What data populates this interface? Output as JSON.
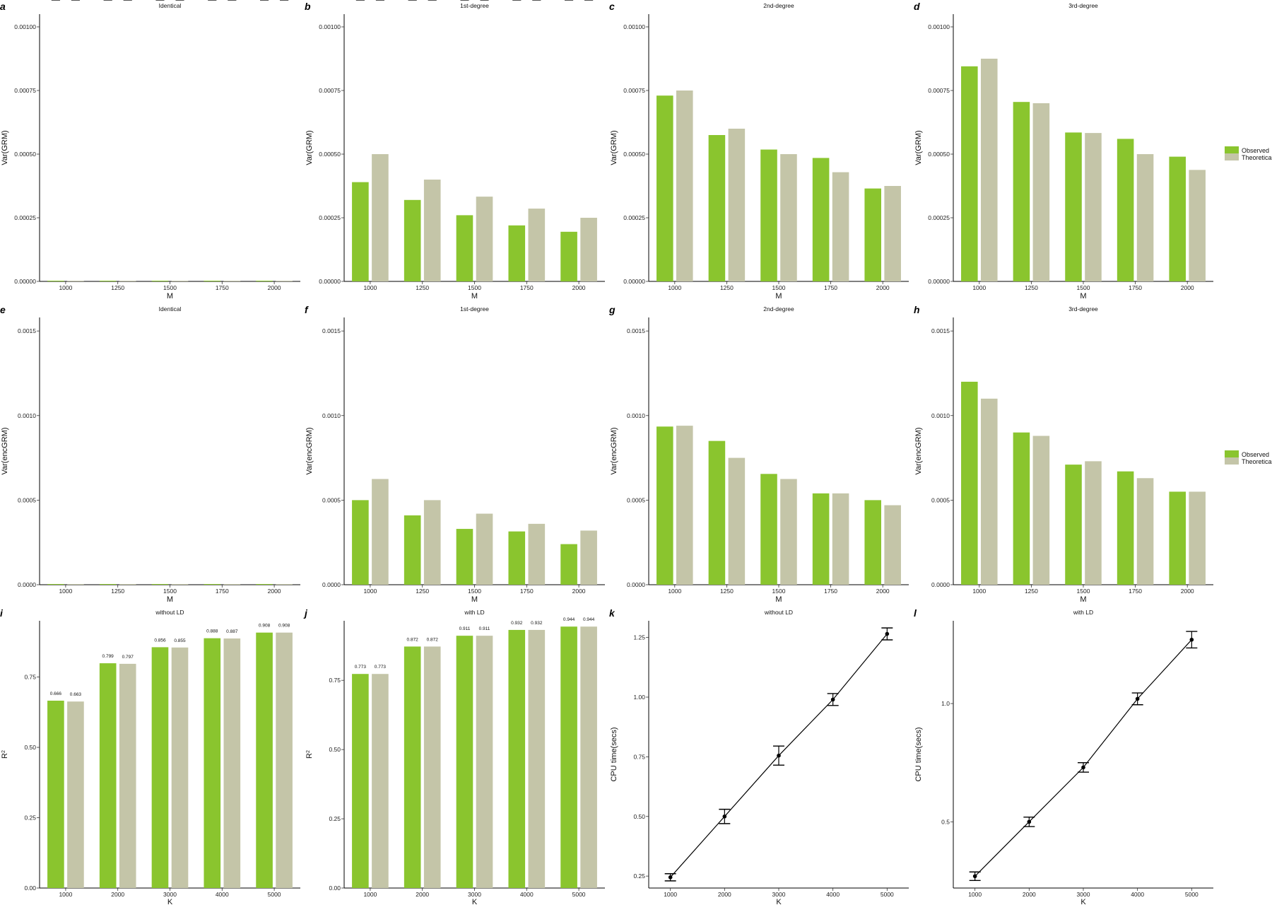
{
  "colors": {
    "observed": "#8ac52e",
    "theoretical": "#c4c5a8",
    "line": "#000000"
  },
  "legends": [
    {
      "items": [
        {
          "label": "Observed",
          "color": "#8ac52e"
        },
        {
          "label": "Theoretical",
          "color": "#c4c5a8"
        }
      ]
    },
    {
      "items": [
        {
          "label": "Observed",
          "color": "#8ac52e"
        },
        {
          "label": "Theoretical",
          "color": "#c4c5a8"
        }
      ]
    }
  ],
  "chart_data": [
    {
      "letter": "a",
      "type": "bar",
      "title": "Identical",
      "xlabel": "M",
      "ylabel": "Var(GRM)",
      "ylabel_sup": "",
      "categories": [
        "1000",
        "1250",
        "1500",
        "1750",
        "2000"
      ],
      "ylim": [
        0,
        0.00105
      ],
      "yticks": [
        0,
        0.00025,
        0.0005,
        0.00075,
        0.001
      ],
      "yticklabels": [
        "0.00000",
        "0.00025",
        "0.00050",
        "0.00075",
        "0.00100"
      ],
      "series": [
        {
          "name": "Observed",
          "values": [
            2e-06,
            2e-06,
            2e-06,
            2e-06,
            2e-06
          ]
        },
        {
          "name": "Theoretical",
          "values": [
            1e-06,
            1e-06,
            1e-06,
            1e-06,
            1e-06
          ]
        }
      ]
    },
    {
      "letter": "b",
      "type": "bar",
      "title": "1st-degree",
      "xlabel": "M",
      "ylabel": "Var(GRM)",
      "ylabel_sup": "",
      "categories": [
        "1000",
        "1250",
        "1500",
        "1750",
        "2000"
      ],
      "ylim": [
        0,
        0.00105
      ],
      "yticks": [
        0,
        0.00025,
        0.0005,
        0.00075,
        0.001
      ],
      "yticklabels": [
        "0.00000",
        "0.00025",
        "0.00050",
        "0.00075",
        "0.00100"
      ],
      "series": [
        {
          "name": "Observed",
          "values": [
            0.00039,
            0.00032,
            0.00026,
            0.00022,
            0.000195
          ]
        },
        {
          "name": "Theoretical",
          "values": [
            0.0005,
            0.0004,
            0.000333,
            0.000286,
            0.00025
          ]
        }
      ]
    },
    {
      "letter": "c",
      "type": "bar",
      "title": "2nd-degree",
      "xlabel": "M",
      "ylabel": "Var(GRM)",
      "ylabel_sup": "",
      "categories": [
        "1000",
        "1250",
        "1500",
        "1750",
        "2000"
      ],
      "ylim": [
        0,
        0.00105
      ],
      "yticks": [
        0,
        0.00025,
        0.0005,
        0.00075,
        0.001
      ],
      "yticklabels": [
        "0.00000",
        "0.00025",
        "0.00050",
        "0.00075",
        "0.00100"
      ],
      "series": [
        {
          "name": "Observed",
          "values": [
            0.00073,
            0.000575,
            0.000518,
            0.000485,
            0.000365
          ]
        },
        {
          "name": "Theoretical",
          "values": [
            0.00075,
            0.0006,
            0.0005,
            0.000429,
            0.000375
          ]
        }
      ]
    },
    {
      "letter": "d",
      "type": "bar",
      "title": "3rd-degree",
      "xlabel": "M",
      "ylabel": "Var(GRM)",
      "ylabel_sup": "",
      "categories": [
        "1000",
        "1250",
        "1500",
        "1750",
        "2000"
      ],
      "ylim": [
        0,
        0.00105
      ],
      "yticks": [
        0,
        0.00025,
        0.0005,
        0.00075,
        0.001
      ],
      "yticklabels": [
        "0.00000",
        "0.00025",
        "0.00050",
        "0.00075",
        "0.00100"
      ],
      "series": [
        {
          "name": "Observed",
          "values": [
            0.000845,
            0.000705,
            0.000585,
            0.00056,
            0.00049
          ]
        },
        {
          "name": "Theoretical",
          "values": [
            0.000875,
            0.0007,
            0.000583,
            0.0005,
            0.000438
          ]
        }
      ]
    },
    {
      "letter": "e",
      "type": "bar",
      "title": "Identical",
      "xlabel": "M",
      "ylabel": "Var(encGRM)",
      "ylabel_sup": "",
      "categories": [
        "1000",
        "1250",
        "1500",
        "1750",
        "2000"
      ],
      "ylim": [
        0,
        0.00158
      ],
      "yticks": [
        0,
        0.0005,
        0.001,
        0.0015
      ],
      "yticklabels": [
        "0.0000",
        "0.0005",
        "0.0010",
        "0.0015"
      ],
      "series": [
        {
          "name": "Observed",
          "values": [
            3e-06,
            3e-06,
            3e-06,
            3e-06,
            3e-06
          ]
        },
        {
          "name": "Theoretical",
          "values": [
            2e-06,
            2e-06,
            2e-06,
            2e-06,
            2e-06
          ]
        }
      ]
    },
    {
      "letter": "f",
      "type": "bar",
      "title": "1st-degree",
      "xlabel": "M",
      "ylabel": "Var(encGRM)",
      "ylabel_sup": "",
      "categories": [
        "1000",
        "1250",
        "1500",
        "1750",
        "2000"
      ],
      "ylim": [
        0,
        0.00158
      ],
      "yticks": [
        0,
        0.0005,
        0.001,
        0.0015
      ],
      "yticklabels": [
        "0.0000",
        "0.0005",
        "0.0010",
        "0.0015"
      ],
      "series": [
        {
          "name": "Observed",
          "values": [
            0.0005,
            0.00041,
            0.00033,
            0.000315,
            0.00024
          ]
        },
        {
          "name": "Theoretical",
          "values": [
            0.000625,
            0.0005,
            0.00042,
            0.00036,
            0.00032
          ]
        }
      ]
    },
    {
      "letter": "g",
      "type": "bar",
      "title": "2nd-degree",
      "xlabel": "M",
      "ylabel": "Var(encGRM)",
      "ylabel_sup": "",
      "categories": [
        "1000",
        "1250",
        "1500",
        "1750",
        "2000"
      ],
      "ylim": [
        0,
        0.00158
      ],
      "yticks": [
        0,
        0.0005,
        0.001,
        0.0015
      ],
      "yticklabels": [
        "0.0000",
        "0.0005",
        "0.0010",
        "0.0015"
      ],
      "series": [
        {
          "name": "Observed",
          "values": [
            0.000935,
            0.00085,
            0.000655,
            0.00054,
            0.0005
          ]
        },
        {
          "name": "Theoretical",
          "values": [
            0.00094,
            0.00075,
            0.000625,
            0.00054,
            0.00047
          ]
        }
      ]
    },
    {
      "letter": "h",
      "type": "bar",
      "title": "3rd-degree",
      "xlabel": "M",
      "ylabel": "Var(encGRM)",
      "ylabel_sup": "",
      "categories": [
        "1000",
        "1250",
        "1500",
        "1750",
        "2000"
      ],
      "ylim": [
        0,
        0.00158
      ],
      "yticks": [
        0,
        0.0005,
        0.001,
        0.0015
      ],
      "yticklabels": [
        "0.0000",
        "0.0005",
        "0.0010",
        "0.0015"
      ],
      "series": [
        {
          "name": "Observed",
          "values": [
            0.0012,
            0.0009,
            0.00071,
            0.00067,
            0.00055
          ]
        },
        {
          "name": "Theoretical",
          "values": [
            0.0011,
            0.00088,
            0.00073,
            0.00063,
            0.00055
          ]
        }
      ]
    },
    {
      "letter": "i",
      "type": "bar",
      "title": "without LD",
      "xlabel": "K",
      "ylabel": "R",
      "ylabel_sup": "2",
      "categories": [
        "1000",
        "2000",
        "3000",
        "4000",
        "5000"
      ],
      "ylim": [
        0,
        0.95
      ],
      "yticks": [
        0,
        0.25,
        0.5,
        0.75
      ],
      "yticklabels": [
        "0.00",
        "0.25",
        "0.50",
        "0.75"
      ],
      "series": [
        {
          "name": "Observed",
          "values": [
            0.666,
            0.799,
            0.856,
            0.888,
            0.908
          ],
          "labels": [
            "0.666",
            "0.799",
            "0.856",
            "0.888",
            "0.908"
          ],
          "err": [
            0.002,
            0.002,
            0.002,
            0.002,
            0.002
          ]
        },
        {
          "name": "Theoretical",
          "values": [
            0.663,
            0.797,
            0.855,
            0.887,
            0.908
          ],
          "labels": [
            "0.663",
            "0.797",
            "0.855",
            "0.887",
            "0.908"
          ],
          "err": [
            0.002,
            0.002,
            0.002,
            0.002,
            0.002
          ]
        }
      ]
    },
    {
      "letter": "j",
      "type": "bar",
      "title": "with LD",
      "xlabel": "K",
      "ylabel": "R",
      "ylabel_sup": "2",
      "categories": [
        "1000",
        "2000",
        "3000",
        "4000",
        "5000"
      ],
      "ylim": [
        0,
        0.965
      ],
      "yticks": [
        0,
        0.25,
        0.5,
        0.75
      ],
      "yticklabels": [
        "0.00",
        "0.25",
        "0.50",
        "0.75"
      ],
      "series": [
        {
          "name": "Observed",
          "values": [
            0.773,
            0.872,
            0.911,
            0.932,
            0.944
          ],
          "labels": [
            "0.773",
            "0.872",
            "0.911",
            "0.932",
            "0.944"
          ],
          "err": [
            0.002,
            0.002,
            0.002,
            0.002,
            0.002
          ]
        },
        {
          "name": "Theoretical",
          "values": [
            0.773,
            0.872,
            0.911,
            0.932,
            0.944
          ],
          "labels": [
            "0.773",
            "0.872",
            "0.911",
            "0.932",
            "0.944"
          ],
          "err": [
            0.002,
            0.002,
            0.002,
            0.002,
            0.002
          ]
        }
      ]
    },
    {
      "letter": "k",
      "type": "line",
      "title": "without LD",
      "xlabel": "K",
      "ylabel": "CPU time(secs)",
      "ylabel_sup": "",
      "x": [
        1000,
        2000,
        3000,
        4000,
        5000
      ],
      "xticklabels": [
        "1000",
        "2000",
        "3000",
        "4000",
        "5000"
      ],
      "xlim": [
        600,
        5400
      ],
      "ylim": [
        0.2,
        1.32
      ],
      "yticks": [
        0.25,
        0.5,
        0.75,
        1.0,
        1.25
      ],
      "yticklabels": [
        "0.25",
        "0.50",
        "0.75",
        "1.00",
        "1.25"
      ],
      "y": [
        0.245,
        0.5,
        0.755,
        0.99,
        1.265
      ],
      "err": [
        0.015,
        0.03,
        0.04,
        0.025,
        0.025
      ]
    },
    {
      "letter": "l",
      "type": "line",
      "title": "with LD",
      "xlabel": "K",
      "ylabel": "CPU time(secs)",
      "ylabel_sup": "",
      "x": [
        1000,
        2000,
        3000,
        4000,
        5000
      ],
      "xticklabels": [
        "1000",
        "2000",
        "3000",
        "4000",
        "5000"
      ],
      "xlim": [
        600,
        5400
      ],
      "ylim": [
        0.22,
        1.35
      ],
      "yticks": [
        0.5,
        1.0
      ],
      "yticklabels": [
        "0.5",
        "1.0"
      ],
      "y": [
        0.27,
        0.5,
        0.73,
        1.02,
        1.27
      ],
      "err": [
        0.018,
        0.02,
        0.02,
        0.025,
        0.035
      ]
    }
  ]
}
